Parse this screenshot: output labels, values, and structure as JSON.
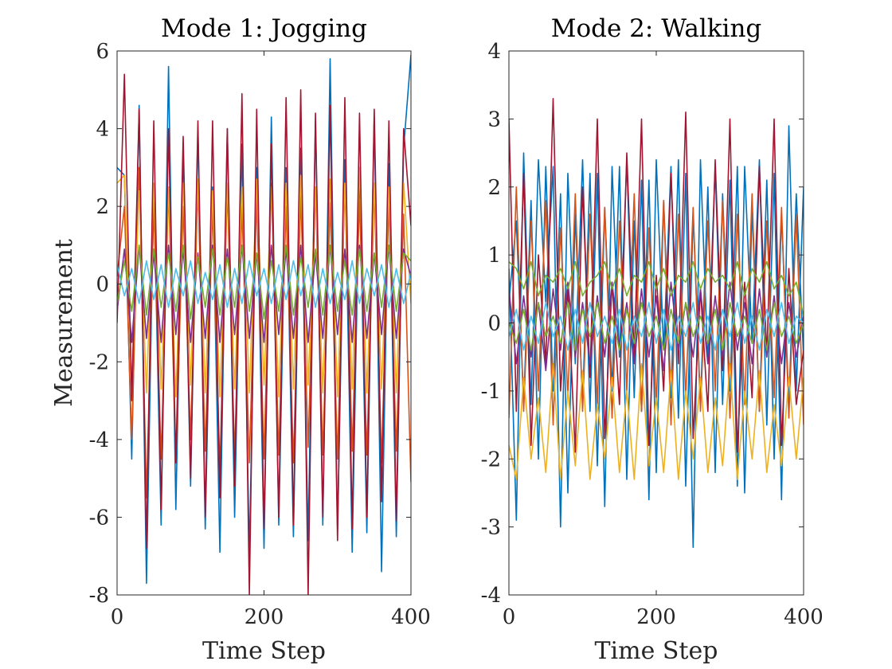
{
  "chart_data": [
    {
      "type": "line",
      "title": "Mode 1: Jogging",
      "xlabel": "Time Step",
      "ylabel": "Measurement",
      "xlim": [
        0,
        400
      ],
      "ylim": [
        -8,
        6
      ],
      "xticks": [
        "0",
        "200",
        "400"
      ],
      "yticks": [
        "-8",
        "-6",
        "-4",
        "-2",
        "0",
        "2",
        "4",
        "6"
      ],
      "x": [
        0,
        10,
        20,
        30,
        40,
        50,
        60,
        70,
        80,
        90,
        100,
        110,
        120,
        130,
        140,
        150,
        160,
        170,
        180,
        190,
        200,
        210,
        220,
        230,
        240,
        250,
        260,
        270,
        280,
        290,
        300,
        310,
        320,
        330,
        340,
        350,
        360,
        370,
        380,
        390,
        400
      ],
      "series": [
        {
          "color": "#0072BD",
          "values": [
            3.0,
            2.8,
            -4.5,
            4.6,
            -7.7,
            2.5,
            -6.2,
            5.6,
            -5.8,
            3.5,
            -5.2,
            4.0,
            -6.3,
            2.5,
            -6.9,
            4.0,
            -6.0,
            3.6,
            -7.0,
            3.0,
            -6.8,
            4.3,
            -6.2,
            3.0,
            -6.5,
            3.5,
            -6.6,
            4.2,
            -6.2,
            5.8,
            -6.3,
            3.2,
            -6.9,
            3.0,
            -6.4,
            4.3,
            -7.4,
            3.1,
            -6.5,
            3.5,
            5.9
          ]
        },
        {
          "color": "#D95319",
          "values": [
            0.2,
            2.0,
            -4.0,
            3.0,
            -5.5,
            2.0,
            -4.5,
            2.5,
            -4.6,
            2.0,
            -4.0,
            2.5,
            -4.3,
            2.0,
            -4.8,
            2.5,
            -4.4,
            2.0,
            -4.6,
            2.2,
            -4.5,
            2.6,
            -4.4,
            2.0,
            -4.6,
            2.3,
            -4.2,
            2.5,
            -4.4,
            2.1,
            -4.5,
            2.6,
            -4.3,
            2.2,
            -4.4,
            2.5,
            -4.6,
            2.1,
            -4.3,
            1.8,
            -5.1
          ]
        },
        {
          "color": "#EDB120",
          "values": [
            2.6,
            2.8,
            -2.6,
            2.4,
            -2.8,
            2.6,
            -2.7,
            2.5,
            -2.9,
            2.6,
            -2.6,
            2.7,
            -2.8,
            2.4,
            -2.9,
            2.6,
            -2.7,
            2.5,
            -2.8,
            2.7,
            -2.6,
            2.5,
            -2.9,
            2.6,
            -2.7,
            2.8,
            -2.6,
            2.5,
            -2.8,
            2.7,
            -2.9,
            2.6,
            -2.7,
            3.0,
            -2.8,
            2.6,
            -2.7,
            2.5,
            -2.8,
            2.6,
            -0.5
          ]
        },
        {
          "color": "#A2142F",
          "values": [
            -1.0,
            5.4,
            -3.0,
            4.5,
            -6.8,
            4.2,
            -5.8,
            4.0,
            -4.6,
            3.8,
            -5.0,
            4.2,
            -6.0,
            4.2,
            -5.5,
            4.0,
            -5.2,
            4.9,
            -8.0,
            4.5,
            -6.3,
            3.6,
            -6.0,
            4.8,
            -6.2,
            5.0,
            -8.0,
            4.4,
            -6.0,
            4.6,
            -6.6,
            4.8,
            -6.3,
            4.4,
            -6.0,
            4.5,
            -5.6,
            4.2,
            -6.1,
            4.0,
            1.5
          ]
        },
        {
          "color": "#7E2F8E",
          "values": [
            -0.7,
            0.9,
            -1.5,
            1.0,
            -1.4,
            0.8,
            -1.5,
            1.0,
            -1.3,
            0.9,
            -1.5,
            0.8,
            -1.4,
            1.0,
            -1.5,
            0.9,
            -1.3,
            1.0,
            -1.4,
            0.8,
            -1.5,
            1.0,
            -1.3,
            0.9,
            -1.4,
            1.0,
            -1.5,
            0.8,
            -1.4,
            1.0,
            -1.3,
            0.9,
            -1.5,
            1.0,
            -1.4,
            0.8,
            -1.3,
            1.0,
            -1.4,
            0.9,
            0.2
          ]
        },
        {
          "color": "#77AC30",
          "values": [
            -0.5,
            0.6,
            -0.7,
            1.0,
            -0.8,
            0.9,
            -0.6,
            0.8,
            -0.7,
            1.0,
            -0.9,
            0.7,
            -0.6,
            0.9,
            -0.8,
            0.7,
            -0.6,
            1.0,
            -0.7,
            0.8,
            -0.9,
            0.6,
            -0.7,
            1.0,
            -0.8,
            0.7,
            -0.6,
            0.9,
            -0.8,
            1.0,
            -0.7,
            0.6,
            -0.8,
            0.9,
            -0.7,
            0.8,
            -0.6,
            1.0,
            -0.7,
            0.8,
            0.6
          ]
        },
        {
          "color": "#4DBEEE",
          "values": [
            0.5,
            -0.3,
            0.4,
            -0.5,
            0.6,
            -0.4,
            0.5,
            -0.6,
            0.4,
            -0.3,
            0.6,
            -0.5,
            0.3,
            -0.4,
            0.5,
            -0.6,
            0.4,
            -0.5,
            0.6,
            -0.3,
            0.4,
            -0.5,
            0.5,
            -0.4,
            0.6,
            -0.3,
            0.5,
            -0.6,
            0.4,
            -0.5,
            0.3,
            -0.4,
            0.6,
            -0.5,
            0.4,
            -0.3,
            0.5,
            -0.6,
            0.4,
            -0.5,
            0.3
          ]
        }
      ]
    },
    {
      "type": "line",
      "title": "Mode 2: Walking",
      "xlabel": "Time Step",
      "ylabel": "",
      "xlim": [
        0,
        400
      ],
      "ylim": [
        -4,
        4
      ],
      "xticks": [
        "0",
        "200",
        "400"
      ],
      "yticks": [
        "-4",
        "-3",
        "-2",
        "-1",
        "0",
        "1",
        "2",
        "3",
        "4"
      ],
      "x": [
        0,
        10,
        20,
        30,
        40,
        50,
        60,
        70,
        80,
        90,
        100,
        110,
        120,
        130,
        140,
        150,
        160,
        170,
        180,
        190,
        200,
        210,
        220,
        230,
        240,
        250,
        260,
        270,
        280,
        290,
        300,
        310,
        320,
        330,
        340,
        350,
        360,
        370,
        380,
        390,
        400
      ],
      "series": [
        {
          "color": "#0072BD",
          "values": [
            0.8,
            -2.9,
            2.5,
            -1.2,
            2.4,
            0.3,
            2.3,
            -3.0,
            2.2,
            -0.6,
            2.4,
            -1.3,
            2.2,
            -2.7,
            2.3,
            -0.5,
            2.4,
            -1.1,
            2.1,
            -2.6,
            2.4,
            -0.4,
            2.3,
            -1.4,
            2.2,
            -3.3,
            2.4,
            -0.6,
            2.3,
            -1.2,
            2.1,
            -2.4,
            2.3,
            -0.3,
            2.4,
            -1.5,
            2.2,
            -2.6,
            2.9,
            -1.0,
            2.0
          ]
        },
        {
          "color": "#0072BD",
          "values": [
            0.3,
            1.5,
            -1.2,
            1.8,
            -2.0,
            2.3,
            -1.0,
            1.9,
            -2.5,
            1.6,
            -1.2,
            2.2,
            -2.1,
            1.7,
            -1.0,
            2.3,
            -2.3,
            1.5,
            -1.3,
            2.1,
            -2.2,
            1.8,
            -1.1,
            2.4,
            -2.4,
            1.6,
            -1.2,
            2.0,
            -2.2,
            1.9,
            -1.0,
            2.3,
            -2.5,
            1.7,
            -1.3,
            2.1,
            -2.0,
            1.6,
            -1.2,
            1.9,
            -0.5
          ]
        },
        {
          "color": "#D95319",
          "values": [
            -1.4,
            2.0,
            -1.3,
            1.5,
            -1.0,
            1.8,
            -1.5,
            1.4,
            -1.1,
            1.9,
            -1.3,
            1.6,
            -1.2,
            1.7,
            -1.4,
            1.5,
            -1.0,
            1.9,
            -1.3,
            1.4,
            -1.2,
            1.8,
            -1.5,
            1.6,
            -1.1,
            1.7,
            -1.3,
            1.5,
            -1.0,
            1.8,
            -1.4,
            1.6,
            -1.2,
            1.9,
            -1.3,
            1.5,
            -1.1,
            1.7,
            -1.4,
            1.6,
            -1.5
          ]
        },
        {
          "color": "#EDB120",
          "values": [
            -1.8,
            -2.3,
            -0.8,
            -2.0,
            -1.1,
            -2.2,
            -0.6,
            -2.3,
            -1.0,
            -2.1,
            -0.7,
            -2.3,
            -1.2,
            -2.0,
            -0.8,
            -2.2,
            -1.0,
            -2.3,
            -0.6,
            -2.1,
            -1.1,
            -2.2,
            -0.7,
            -2.3,
            -1.0,
            -2.0,
            -0.8,
            -2.2,
            -1.1,
            -2.1,
            -0.6,
            -2.3,
            -1.0,
            -2.0,
            -0.7,
            -2.2,
            -1.2,
            -2.1,
            -0.8,
            -2.0,
            -0.8
          ]
        },
        {
          "color": "#A2142F",
          "values": [
            3.0,
            -1.3,
            2.2,
            -1.8,
            1.0,
            -0.6,
            3.3,
            -1.0,
            0.5,
            -1.9,
            2.0,
            -0.8,
            3.0,
            -1.7,
            0.6,
            -1.2,
            2.5,
            -0.5,
            3.0,
            -1.8,
            0.7,
            -1.0,
            2.2,
            -0.6,
            3.1,
            -1.7,
            0.5,
            -1.3,
            2.4,
            -0.7,
            3.0,
            -1.9,
            0.6,
            -1.1,
            2.3,
            -0.5,
            3.0,
            -1.8,
            0.8,
            -1.2,
            -0.4
          ]
        },
        {
          "color": "#7E2F8E",
          "values": [
            0.5,
            -0.6,
            0.4,
            -0.5,
            0.3,
            -0.7,
            0.5,
            -0.4,
            0.6,
            -0.5,
            0.3,
            -0.6,
            0.4,
            -0.5,
            0.6,
            -0.4,
            0.3,
            -0.6,
            0.5,
            -0.5,
            0.4,
            -0.7,
            0.6,
            -0.4,
            0.3,
            -0.5,
            0.5,
            -0.6,
            0.4,
            -0.5,
            0.6,
            -0.4,
            0.3,
            -0.6,
            0.5,
            -0.5,
            0.4,
            -0.6,
            0.3,
            -0.5,
            0.1
          ]
        },
        {
          "color": "#77AC30",
          "values": [
            0.9,
            0.8,
            0.5,
            0.9,
            0.4,
            0.7,
            0.6,
            0.8,
            0.5,
            0.9,
            0.4,
            0.6,
            0.7,
            0.9,
            0.5,
            0.8,
            0.4,
            0.7,
            0.6,
            0.9,
            0.5,
            0.8,
            0.4,
            0.7,
            0.6,
            0.9,
            0.5,
            0.8,
            0.6,
            0.7,
            0.5,
            0.9,
            0.4,
            0.8,
            0.6,
            0.9,
            0.5,
            0.7,
            0.4,
            0.6,
            0.1
          ]
        },
        {
          "color": "#77AC30",
          "values": [
            0.0,
            -0.3,
            0.2,
            -0.4,
            0.3,
            -0.2,
            0.1,
            -0.3,
            0.3,
            -0.4,
            0.2,
            -0.2,
            0.3,
            -0.3,
            0.1,
            -0.4,
            0.2,
            -0.3,
            0.3,
            -0.2,
            0.1,
            -0.4,
            0.2,
            -0.3,
            0.3,
            -0.2,
            0.1,
            -0.3,
            0.2,
            -0.4,
            0.3,
            -0.2,
            0.1,
            -0.3,
            0.2,
            -0.4,
            0.3,
            -0.2,
            0.1,
            -0.3,
            0.0
          ]
        },
        {
          "color": "#4DBEEE",
          "values": [
            -0.2,
            0.2,
            -0.4,
            0.1,
            -0.3,
            0.3,
            -0.2,
            0.1,
            -0.4,
            0.2,
            -0.3,
            0.3,
            -0.2,
            0.1,
            -0.3,
            0.2,
            -0.4,
            0.1,
            -0.2,
            0.3,
            -0.3,
            0.2,
            -0.4,
            0.1,
            -0.2,
            0.3,
            -0.3,
            0.1,
            -0.4,
            0.2,
            -0.2,
            0.3,
            -0.3,
            0.1,
            -0.4,
            0.2,
            -0.2,
            0.3,
            -0.3,
            0.1,
            0.0
          ]
        }
      ]
    }
  ]
}
